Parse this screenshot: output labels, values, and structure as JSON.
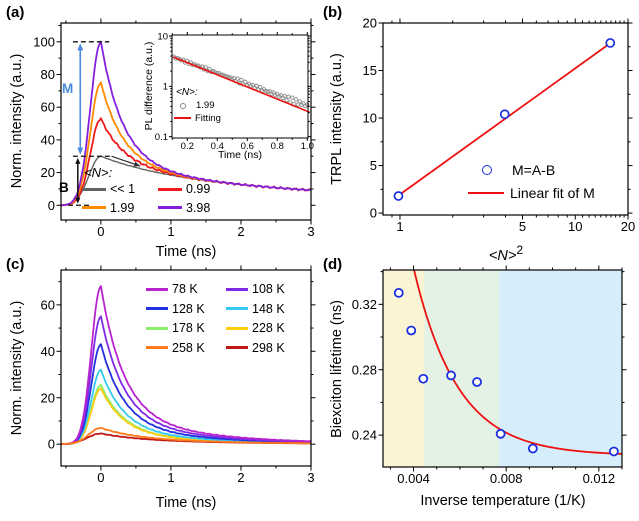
{
  "chart_data": [
    {
      "id": "a",
      "panel_label": "(a)",
      "type": "line",
      "xlabel": "Time (ns)",
      "ylabel": "Norm. intensity (a.u.)",
      "xlim": [
        -0.57,
        3
      ],
      "ylim": [
        -9,
        111.5
      ],
      "xticks": [
        0,
        1,
        2,
        3
      ],
      "xminor": [
        -0.5,
        0.5,
        1.5,
        2.5
      ],
      "yticks": [
        0,
        20,
        40,
        60,
        80,
        100
      ],
      "yminor": [
        10,
        30,
        50,
        70,
        90,
        110
      ],
      "legend": {
        "header": "<N>:",
        "items": [
          {
            "label": "<< 1",
            "color": "#636363"
          },
          {
            "label": "0.99",
            "color": "#EF1A1A"
          },
          {
            "label": "1.99",
            "color": "#FF8A00"
          },
          {
            "label": "3.98",
            "color": "#8420DD"
          }
        ]
      },
      "series": [
        {
          "label": "<< 1",
          "color": "#636363",
          "peak": 30,
          "rise_sigma": 0.24,
          "components": [
            [
              10.5,
              0.9
            ],
            [
              19.5,
              3.8
            ]
          ],
          "noise": 0.08
        },
        {
          "label": "0.99",
          "color": "#EF1A1A",
          "peak": 53,
          "rise_sigma": 0.21,
          "components": [
            [
              23,
              0.3
            ],
            [
              10.5,
              0.9
            ],
            [
              19.5,
              3.8
            ]
          ],
          "noise": 0.45
        },
        {
          "label": "1.99",
          "color": "#FF8A00",
          "peak": 75,
          "rise_sigma": 0.21,
          "components": [
            [
              45,
              0.3
            ],
            [
              10.5,
              0.9
            ],
            [
              19.5,
              3.8
            ]
          ],
          "noise": 0.3
        },
        {
          "label": "3.98",
          "color": "#8420DD",
          "peak": 100,
          "rise_sigma": 0.21,
          "components": [
            [
              70,
              0.3
            ],
            [
              10.5,
              0.9
            ],
            [
              19.5,
              3.8
            ]
          ],
          "noise": 0.3
        }
      ],
      "annotations": {
        "m_label": "M",
        "b_label": "B",
        "m_color": "#4A89DC",
        "m_arrow_x": -0.295,
        "m_span": [
          31,
          99
        ],
        "b_arrow_x": -0.33,
        "b_span": [
          1,
          29
        ],
        "dashes": [
          {
            "y": 100,
            "x": [
              -0.4,
              0.12
            ]
          },
          {
            "y": 30,
            "x": [
              -0.4,
              0.15
            ]
          },
          {
            "y": 0,
            "x": [
              -0.47,
              -0.17
            ]
          }
        ],
        "pointer": {
          "from": [
            0.15,
            30
          ],
          "to": [
            0.56,
            24
          ]
        }
      },
      "inset": {
        "xlabel": "Time (ns)",
        "ylabel": "PL difference (a.u.)",
        "xscale": "linear",
        "yscale": "log",
        "xlim": [
          0.098,
          1.005
        ],
        "ylim": [
          0.094,
          10.5
        ],
        "xticks": [
          0.2,
          0.4,
          0.6,
          0.8,
          1.0
        ],
        "xtick_labels": [
          "0.2",
          "0.4",
          "0.6",
          "0.8",
          "1.0"
        ],
        "xminor": [
          0.1,
          0.3,
          0.5,
          0.7,
          0.9
        ],
        "yticks": [
          0.1,
          1,
          10
        ],
        "ytick_labels": [
          "0.1",
          "1",
          "10"
        ],
        "yminor": [
          0.2,
          0.3,
          0.4,
          0.5,
          0.6,
          0.7,
          0.8,
          0.9,
          2,
          3,
          4,
          5,
          6,
          7,
          8,
          9
        ],
        "scatter": {
          "t_start": 0.11,
          "t_end": 1.0,
          "n": 72,
          "y0": 3.9,
          "tau": 0.4,
          "color": "#8A8A8A"
        },
        "fit": {
          "y0": 3.9,
          "tau": 0.36,
          "color": "#EE1111"
        },
        "legend": {
          "header": "<N>:",
          "items": [
            {
              "label": "1.99",
              "marker": "circle",
              "color": "#8A8A8A"
            },
            {
              "label": "Fitting",
              "marker": "line",
              "color": "#EE1111"
            }
          ]
        }
      }
    },
    {
      "id": "b",
      "panel_label": "(b)",
      "type": "scatter",
      "xscale": "log",
      "xlabel_base": "<N>",
      "xlabel_exp": "2",
      "ylabel": "TRPL intensity (a.u.)",
      "xlim": [
        0.8,
        20
      ],
      "ylim": [
        -0.2,
        20
      ],
      "xticks": [
        1,
        5,
        10,
        20
      ],
      "xtick_labels": [
        "1",
        "5",
        "10",
        "20"
      ],
      "xminor": [
        0.9,
        2,
        3,
        4,
        6,
        7,
        8,
        9,
        11,
        12,
        13,
        14,
        15,
        16,
        17,
        18,
        19
      ],
      "yticks": [
        0,
        5,
        10,
        15,
        20
      ],
      "yminor": [
        2.5,
        7.5,
        12.5,
        17.5
      ],
      "points": [
        [
          0.98,
          1.8
        ],
        [
          3.96,
          10.4
        ],
        [
          15.84,
          17.9
        ]
      ],
      "point_color": "#1B2FE0",
      "fit_color": "#EE1111",
      "fit_line": {
        "x1": 0.93,
        "y1": 1.55,
        "x2": 16.6,
        "y2": 18.15
      },
      "legend": {
        "items": [
          {
            "label": "M=A-B",
            "marker": "circle",
            "color": "#1B2FE0"
          },
          {
            "label": "Linear fit of M",
            "marker": "line",
            "color": "#EE1111"
          }
        ]
      }
    },
    {
      "id": "c",
      "panel_label": "(c)",
      "type": "line",
      "xlabel": "Time (ns)",
      "ylabel": "Norm. intensity (a.u.)",
      "xlim": [
        -0.57,
        3
      ],
      "ylim": [
        -9.4,
        75
      ],
      "xticks": [
        0,
        1,
        2,
        3
      ],
      "xminor": [
        -0.5,
        0.5,
        1.5,
        2.5
      ],
      "yticks": [
        0,
        20,
        40,
        60
      ],
      "yminor": [
        10,
        30,
        50,
        70
      ],
      "legend": {
        "items": [
          {
            "label": "78 K",
            "color": "#B822CF"
          },
          {
            "label": "108 K",
            "color": "#7F2AE8"
          },
          {
            "label": "128 K",
            "color": "#2430DC"
          },
          {
            "label": "148 K",
            "color": "#35C9F0"
          },
          {
            "label": "178 K",
            "color": "#8CEE6E"
          },
          {
            "label": "228 K",
            "color": "#FFCD12"
          },
          {
            "label": "258 K",
            "color": "#FF7A1C"
          },
          {
            "label": "298 K",
            "color": "#C01717"
          }
        ]
      },
      "series": [
        {
          "label": "78 K",
          "color": "#B822CF",
          "peak": 68,
          "rise_sigma": 0.19,
          "components": [
            [
              54.4,
              0.32
            ],
            [
              13.6,
              1.25
            ]
          ],
          "noise": 0.12
        },
        {
          "label": "108 K",
          "color": "#7F2AE8",
          "peak": 55,
          "rise_sigma": 0.19,
          "components": [
            [
              44.0,
              0.32
            ],
            [
              11.0,
              1.25
            ]
          ],
          "noise": 0.12
        },
        {
          "label": "128 K",
          "color": "#2430DC",
          "peak": 43,
          "rise_sigma": 0.19,
          "components": [
            [
              34.4,
              0.32
            ],
            [
              8.6,
              1.25
            ]
          ],
          "noise": 0.12
        },
        {
          "label": "148 K",
          "color": "#35C9F0",
          "peak": 32,
          "rise_sigma": 0.19,
          "components": [
            [
              25.6,
              0.32
            ],
            [
              6.4,
              1.25
            ]
          ],
          "noise": 0.12
        },
        {
          "label": "178 K",
          "color": "#8CEE6E",
          "peak": 25.5,
          "rise_sigma": 0.19,
          "components": [
            [
              20.4,
              0.32
            ],
            [
              5.1,
              1.25
            ]
          ],
          "noise": 0.12
        },
        {
          "label": "228 K",
          "color": "#FFCD12",
          "peak": 24,
          "rise_sigma": 0.19,
          "components": [
            [
              19.2,
              0.32
            ],
            [
              4.8,
              1.25
            ]
          ],
          "noise": 0.12
        },
        {
          "label": "258 K",
          "color": "#FF7A1C",
          "peak": 7,
          "rise_sigma": 0.24,
          "components": [
            [
              4.2,
              0.5
            ],
            [
              2.8,
              1.5
            ]
          ],
          "noise": 0.1
        },
        {
          "label": "298 K",
          "color": "#C01717",
          "peak": 4.6,
          "rise_sigma": 0.27,
          "components": [
            [
              2.5,
              0.55
            ],
            [
              2.1,
              1.6
            ]
          ],
          "noise": 0.1
        }
      ]
    },
    {
      "id": "d",
      "panel_label": "(d)",
      "type": "scatter",
      "xlabel": "Inverse temperature (1/K)",
      "ylabel": "Biexciton lifetime (ns)",
      "xlim": [
        0.00268,
        0.013
      ],
      "ylim": [
        0.2205,
        0.341
      ],
      "xticks": [
        0.004,
        0.008,
        0.012
      ],
      "xtick_labels": [
        "0.004",
        "0.008",
        "0.012"
      ],
      "xminor": [
        0.003,
        0.005,
        0.006,
        0.007,
        0.009,
        0.01,
        0.011,
        0.013
      ],
      "yticks": [
        0.24,
        0.28,
        0.32
      ],
      "ytick_labels": [
        "0.24",
        "0.28",
        "0.32"
      ],
      "yminor": [
        0.26,
        0.3,
        0.34
      ],
      "points": [
        [
          0.00336,
          0.327
        ],
        [
          0.0039,
          0.304
        ],
        [
          0.00442,
          0.2745
        ],
        [
          0.00562,
          0.2765
        ],
        [
          0.00674,
          0.2725
        ],
        [
          0.00776,
          0.2408
        ],
        [
          0.00915,
          0.2318
        ],
        [
          0.01265,
          0.23
        ]
      ],
      "point_color": "#1B2FE0",
      "fit_color": "#EE1111",
      "fit": {
        "c": 0.2275,
        "A": 0.942,
        "b": 0.0019,
        "x_start": 0.00402
      },
      "regions": [
        {
          "x0": 0.00268,
          "x1": 0.00447,
          "color": "#FAF3D4"
        },
        {
          "x0": 0.00447,
          "x1": 0.0077,
          "color": "#E4F2E6"
        },
        {
          "x0": 0.0077,
          "x1": 0.013,
          "color": "#D6EEFA"
        }
      ]
    }
  ]
}
